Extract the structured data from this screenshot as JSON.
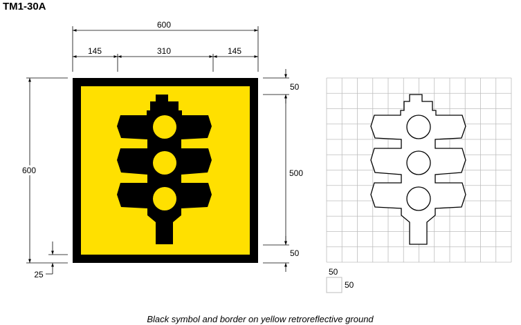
{
  "sign": {
    "code": "TM1-30A",
    "caption": "Black symbol and border on yellow retroreflective ground",
    "symbol": "traffic-light-icon",
    "colors": {
      "ground": "#FFE000",
      "symbol_border": "#000000",
      "grid": "#BDBDBD"
    }
  },
  "dimensions": {
    "overall_width": "600",
    "left_margin": "145",
    "center_width": "310",
    "right_margin": "145",
    "overall_height": "600",
    "inner_height": "500",
    "top_margin": "50",
    "bottom_margin": "50",
    "border": "25"
  },
  "grid_legend": {
    "cell_width": "50",
    "cell_height": "50"
  }
}
